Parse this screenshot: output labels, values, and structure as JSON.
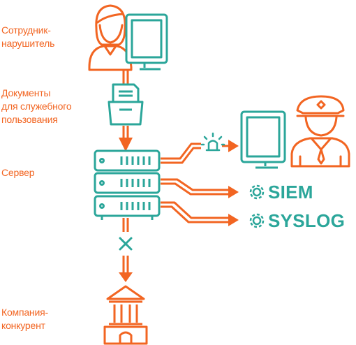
{
  "labels": {
    "employee": "Сотрудник-\nнарушитель",
    "documents": "Документы\nдля служебного\nпользования",
    "server": "Сервер",
    "competitor": "Компания-\nконкурент"
  },
  "outputs": {
    "siem": "SIEM",
    "syslog": "SYSLOG"
  },
  "colors": {
    "accent": "#f26522",
    "teal": "#2ba69a"
  },
  "icons": [
    "employee-icon",
    "monitor-icon",
    "folder-documents-icon",
    "server-icon",
    "siren-icon",
    "security-officer-icon",
    "gear-icon",
    "blocked-x-icon",
    "building-icon"
  ]
}
